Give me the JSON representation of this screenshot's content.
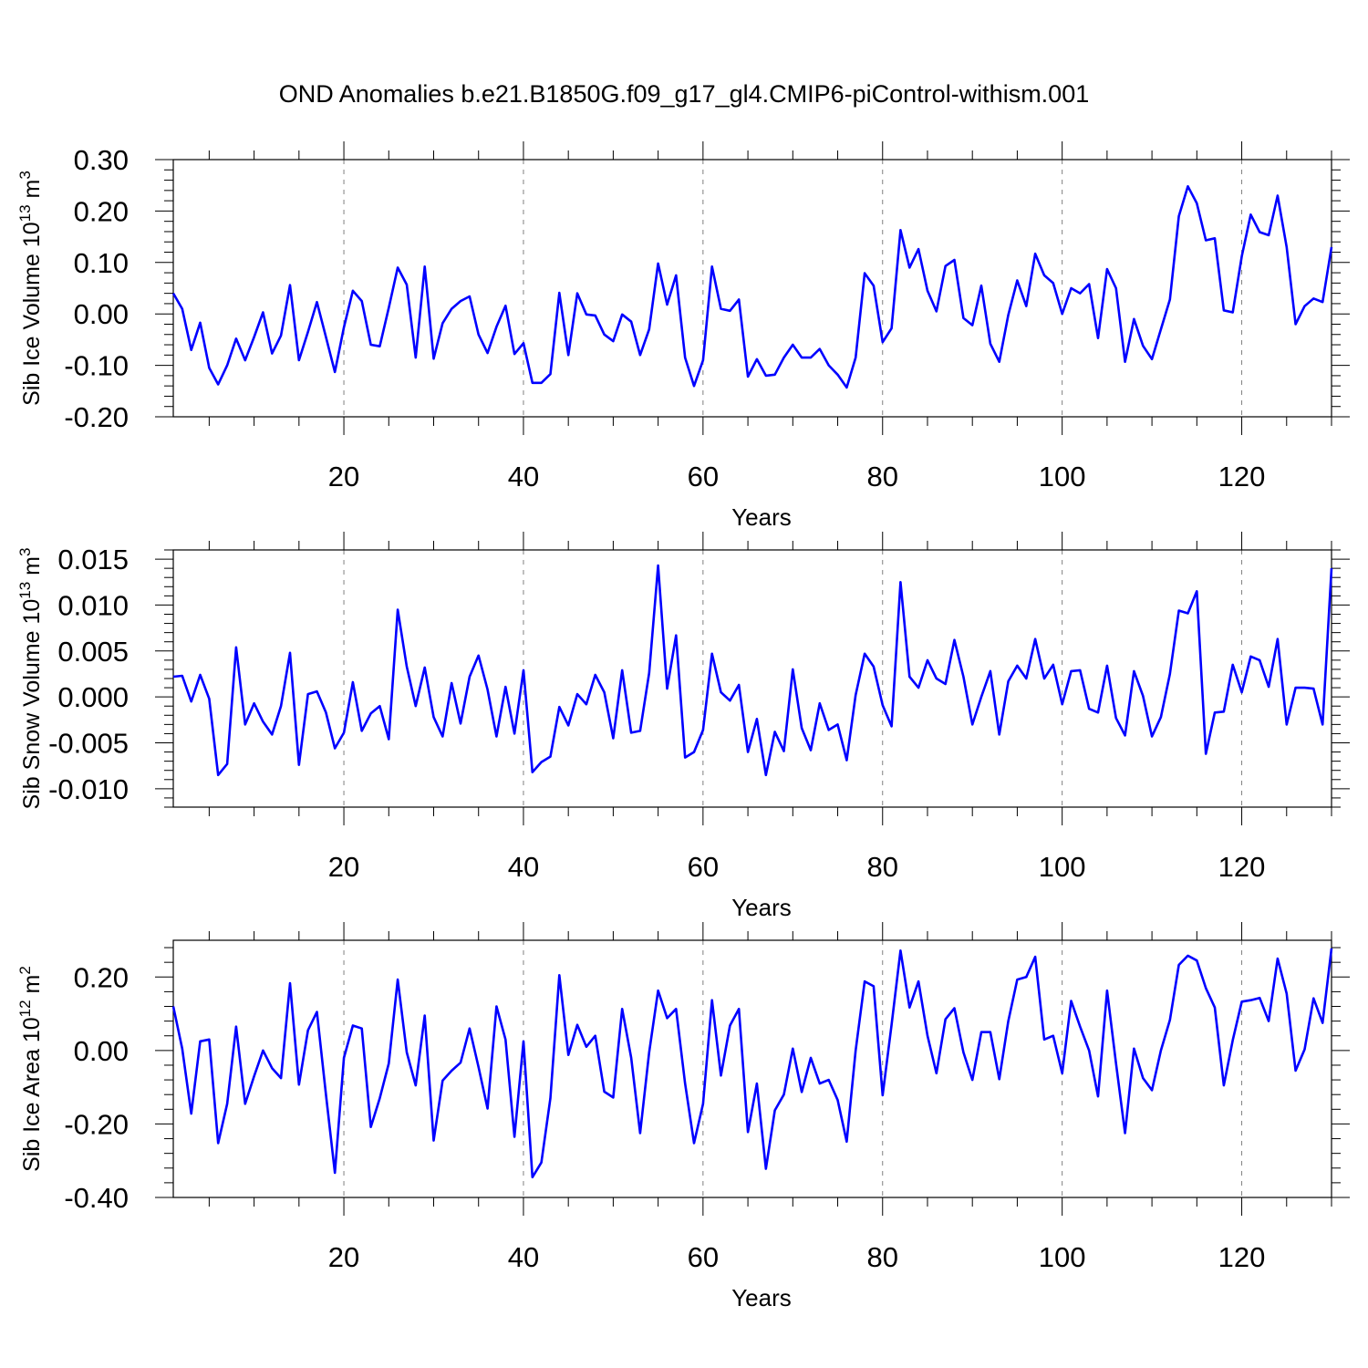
{
  "title": "OND Anomalies b.e21.B1850G.f09_g17_gl4.CMIP6-piControl-withism.001",
  "colors": {
    "line": "#0000ff",
    "grid": "#808080",
    "axis": "#000000"
  },
  "chart_data": [
    {
      "type": "line",
      "name": "panel-ice-volume",
      "xlabel": "Years",
      "ylabel": {
        "main": "Sib Ice Volume 10",
        "exp1": "13",
        "mid": " m",
        "exp2": "3"
      },
      "xlim": [
        1,
        130
      ],
      "ylim": [
        -0.2,
        0.3
      ],
      "xticks": [
        20,
        40,
        60,
        80,
        100,
        120
      ],
      "yticks": [
        -0.2,
        -0.1,
        0.0,
        0.1,
        0.2,
        0.3
      ],
      "ytick_labels": [
        "-0.20",
        "-0.10",
        "0.00",
        "0.10",
        "0.20",
        "0.30"
      ],
      "grid": "vertical dashed at major x ticks",
      "series": [
        {
          "values": [
            0.04,
            0.01,
            -0.07,
            -0.017,
            -0.105,
            -0.137,
            -0.1,
            -0.048,
            -0.09,
            -0.045,
            0.003,
            -0.077,
            -0.042,
            0.056,
            -0.09,
            -0.035,
            0.023,
            -0.045,
            -0.113,
            -0.026,
            0.045,
            0.025,
            -0.06,
            -0.063,
            0.012,
            0.09,
            0.057,
            -0.085,
            0.092,
            -0.087,
            -0.018,
            0.01,
            0.025,
            0.034,
            -0.04,
            -0.076,
            -0.025,
            0.016,
            -0.078,
            -0.057,
            -0.134,
            -0.134,
            -0.117,
            0.041,
            -0.08,
            0.04,
            -0.001,
            -0.003,
            -0.04,
            -0.053,
            -0.001,
            -0.015,
            -0.08,
            -0.03,
            0.098,
            0.018,
            0.075,
            -0.085,
            -0.14,
            -0.09,
            0.092,
            0.01,
            0.006,
            0.028,
            -0.122,
            -0.088,
            -0.12,
            -0.118,
            -0.085,
            -0.06,
            -0.085,
            -0.085,
            -0.068,
            -0.1,
            -0.118,
            -0.143,
            -0.085,
            0.079,
            0.055,
            -0.055,
            -0.028,
            0.163,
            0.09,
            0.126,
            0.045,
            0.005,
            0.093,
            0.105,
            -0.008,
            -0.022,
            0.055,
            -0.058,
            -0.093,
            -0.002,
            0.065,
            0.015,
            0.117,
            0.075,
            0.06,
            0.0,
            0.05,
            0.04,
            0.058,
            -0.047,
            0.087,
            0.05,
            -0.093,
            -0.01,
            -0.062,
            -0.088,
            -0.03,
            0.028,
            0.19,
            0.248,
            0.215,
            0.143,
            0.147,
            0.007,
            0.003,
            0.112,
            0.193,
            0.159,
            0.153,
            0.23,
            0.13,
            -0.02,
            0.015,
            0.03,
            0.023,
            0.13
          ]
        }
      ]
    },
    {
      "type": "line",
      "name": "panel-snow-volume",
      "xlabel": "Years",
      "ylabel": {
        "main": "Sib Snow Volume 10",
        "exp1": "13",
        "mid": " m",
        "exp2": "3"
      },
      "xlim": [
        1,
        130
      ],
      "ylim": [
        -0.012,
        0.016
      ],
      "xticks": [
        20,
        40,
        60,
        80,
        100,
        120
      ],
      "yticks": [
        -0.01,
        -0.005,
        0.0,
        0.005,
        0.01,
        0.015
      ],
      "ytick_labels": [
        "-0.010",
        "-0.005",
        "0.000",
        "0.005",
        "0.010",
        "0.015"
      ],
      "grid": "vertical dashed at major x ticks",
      "series": [
        {
          "values": [
            0.0022,
            0.0023,
            -0.0005,
            0.0024,
            -0.0002,
            -0.0085,
            -0.0073,
            0.0054,
            -0.003,
            -0.0007,
            -0.0027,
            -0.0041,
            -0.001,
            0.0048,
            -0.0074,
            0.0003,
            0.0006,
            -0.0017,
            -0.0056,
            -0.0039,
            0.0016,
            -0.0037,
            -0.0018,
            -0.001,
            -0.0046,
            0.0095,
            0.0033,
            -0.001,
            0.0032,
            -0.0022,
            -0.0043,
            0.0015,
            -0.0029,
            0.0022,
            0.0045,
            0.0008,
            -0.0043,
            0.0011,
            -0.004,
            0.0029,
            -0.0082,
            -0.0071,
            -0.0065,
            -0.0011,
            -0.0031,
            0.0003,
            -0.0008,
            0.0024,
            0.0005,
            -0.0045,
            0.0029,
            -0.0039,
            -0.0037,
            0.0026,
            0.0143,
            0.0009,
            0.0067,
            -0.0066,
            -0.006,
            -0.0036,
            0.0047,
            0.0005,
            -0.0004,
            0.0013,
            -0.006,
            -0.0024,
            -0.0085,
            -0.0038,
            -0.0059,
            0.003,
            -0.0034,
            -0.0058,
            -0.0007,
            -0.0036,
            -0.003,
            -0.0069,
            0.0002,
            0.0047,
            0.0033,
            -0.0009,
            -0.0032,
            0.0125,
            0.0022,
            0.001,
            0.004,
            0.002,
            0.0014,
            0.0062,
            0.0022,
            -0.003,
            0.0,
            0.0028,
            -0.0041,
            0.0017,
            0.0034,
            0.002,
            0.0063,
            0.002,
            0.0035,
            -0.0008,
            0.0028,
            0.0029,
            -0.0013,
            -0.0017,
            0.0034,
            -0.0023,
            -0.0042,
            0.0028,
            0.0001,
            -0.0043,
            -0.0022,
            0.0025,
            0.0094,
            0.0091,
            0.0115,
            -0.0062,
            -0.0017,
            -0.0016,
            0.0035,
            0.0005,
            0.0044,
            0.004,
            0.0011,
            0.0063,
            -0.003,
            0.001,
            0.001,
            0.0009,
            -0.003,
            0.014
          ]
        }
      ]
    },
    {
      "type": "line",
      "name": "panel-ice-area",
      "xlabel": "Years",
      "ylabel": {
        "main": "Sib Ice Area 10",
        "exp1": "12",
        "mid": " m",
        "exp2": "2"
      },
      "xlim": [
        1,
        130
      ],
      "ylim": [
        -0.4,
        0.3
      ],
      "xticks": [
        20,
        40,
        60,
        80,
        100,
        120
      ],
      "yticks": [
        -0.4,
        -0.2,
        0.0,
        0.2
      ],
      "ytick_labels": [
        "-0.40",
        "-0.20",
        "0.00",
        "0.20"
      ],
      "grid": "vertical dashed at major x ticks",
      "series": [
        {
          "values": [
            0.12,
            0.005,
            -0.172,
            0.025,
            0.03,
            -0.252,
            -0.145,
            0.065,
            -0.145,
            -0.07,
            0.0,
            -0.048,
            -0.075,
            0.183,
            -0.093,
            0.055,
            0.105,
            -0.12,
            -0.333,
            -0.02,
            0.068,
            0.06,
            -0.208,
            -0.13,
            -0.035,
            0.193,
            -0.005,
            -0.095,
            0.095,
            -0.245,
            -0.082,
            -0.055,
            -0.033,
            0.06,
            -0.045,
            -0.158,
            0.12,
            0.03,
            -0.235,
            0.025,
            -0.345,
            -0.305,
            -0.13,
            0.205,
            -0.012,
            0.07,
            0.01,
            0.04,
            -0.112,
            -0.128,
            0.113,
            -0.02,
            -0.225,
            -0.005,
            0.163,
            0.088,
            0.113,
            -0.09,
            -0.252,
            -0.145,
            0.137,
            -0.068,
            0.068,
            0.113,
            -0.222,
            -0.09,
            -0.322,
            -0.163,
            -0.12,
            0.005,
            -0.113,
            -0.02,
            -0.09,
            -0.08,
            -0.135,
            -0.248,
            0.0,
            0.188,
            0.175,
            -0.122,
            0.07,
            0.272,
            0.117,
            0.188,
            0.04,
            -0.062,
            0.085,
            0.115,
            -0.005,
            -0.08,
            0.05,
            0.05,
            -0.078,
            0.08,
            0.193,
            0.2,
            0.255,
            0.03,
            0.04,
            -0.062,
            0.135,
            0.065,
            0.0,
            -0.125,
            0.163,
            -0.035,
            -0.225,
            0.005,
            -0.075,
            -0.108,
            0.0,
            0.083,
            0.233,
            0.258,
            0.245,
            0.17,
            0.117,
            -0.095,
            0.028,
            0.133,
            0.137,
            0.143,
            0.08,
            0.25,
            0.155,
            -0.055,
            0.003,
            0.142,
            0.075,
            0.278
          ]
        }
      ]
    }
  ]
}
